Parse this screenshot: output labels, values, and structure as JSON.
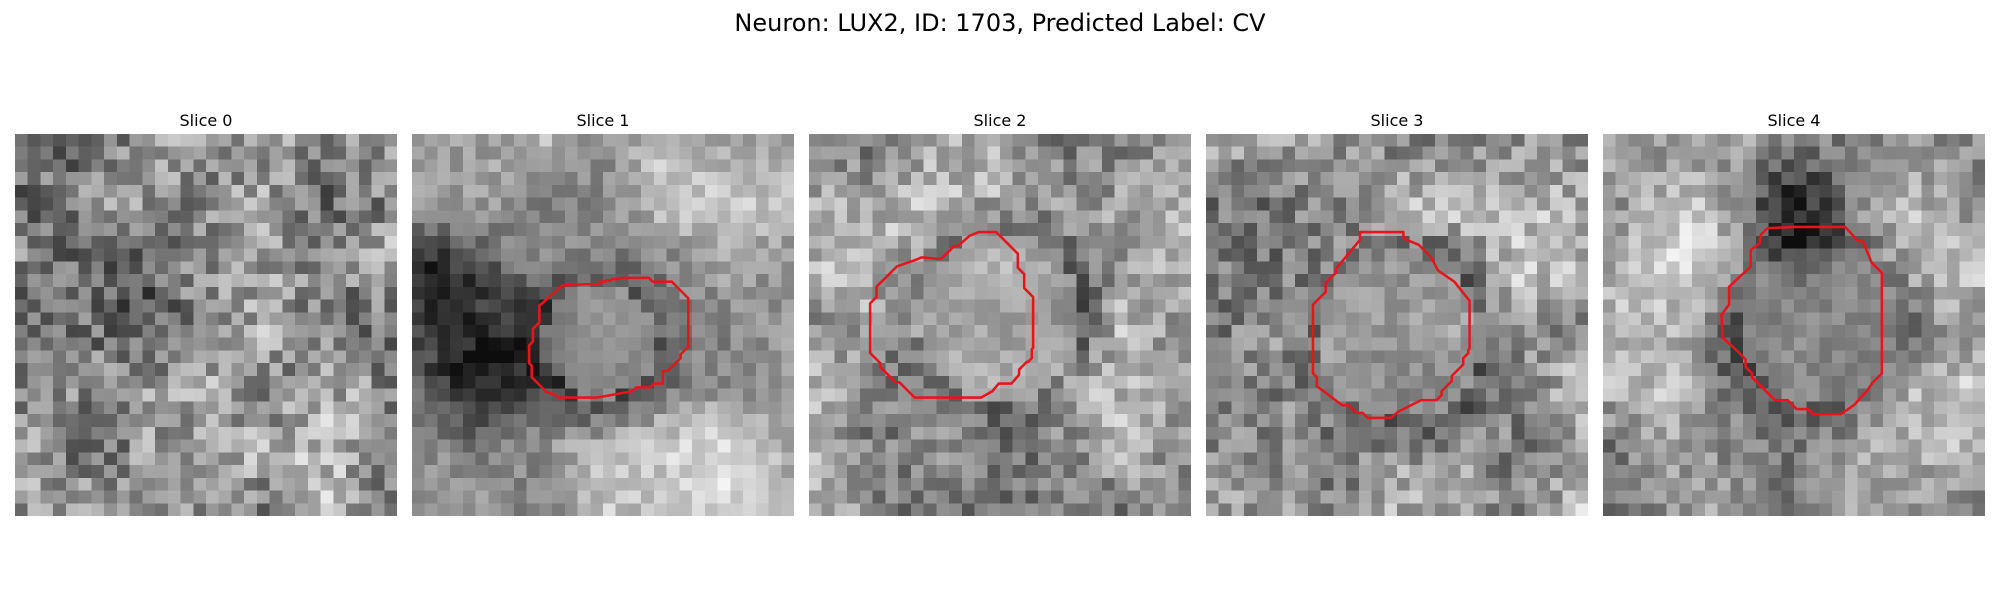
{
  "figure": {
    "title": "Neuron: LUX2, ID: 1703, Predicted Label: CV"
  },
  "panels": [
    {
      "title": "Slice 0",
      "has_contour": false
    },
    {
      "title": "Slice 1",
      "has_contour": true
    },
    {
      "title": "Slice 2",
      "has_contour": true
    },
    {
      "title": "Slice 3",
      "has_contour": true
    },
    {
      "title": "Slice 4",
      "has_contour": true
    }
  ],
  "colors": {
    "contour": "#e8141c",
    "background": "#ffffff"
  }
}
